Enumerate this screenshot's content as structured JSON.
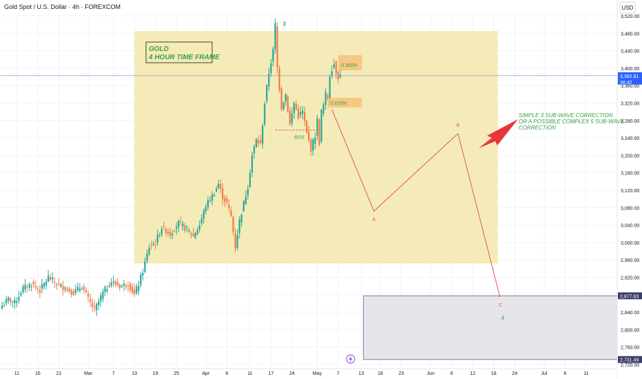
{
  "header": {
    "title": "Gold Spot / U.S. Dollar · 4h · FOREXCOM",
    "currency": "USD"
  },
  "price_tags": {
    "current_price": "3,382.81",
    "countdown": "36:42",
    "level_upper": "2,877.63",
    "level_lower": "2,731.49"
  },
  "annotations": {
    "box_title_line1": "GOLD",
    "box_title_line2": "4 HOUR TIME FRAME",
    "fib_upper": "0.365%",
    "fib_lower": "0.618%",
    "bos": "BOS",
    "wave_peak": "3",
    "wave_a": "A",
    "wave_b": "B",
    "wave_c": "C",
    "wave_4": "4",
    "note_line1": "SIMPLE 3 SUB-WAVE CORRECTION",
    "note_line2": "OR A POSSIBLE COMPLEX 5 SUB-WAVE",
    "note_line3": "CORRECTION"
  },
  "colors": {
    "bull": "#26a69a",
    "bear": "#ef7b45",
    "zone": "#f2e6a6",
    "projection": "#e4574e",
    "wave_label": "#3aa24a",
    "arrow": "#e8353b",
    "price_tag": "#2962ff",
    "grid": "#f0f3fa"
  },
  "chart_data": {
    "type": "candlestick",
    "title": "Gold Spot / U.S. Dollar · 4h · FOREXCOM",
    "timeframe": "4h",
    "y_axis": {
      "range": [
        2720,
        3520
      ],
      "ticks": [
        3520,
        3480,
        3440,
        3400,
        3360,
        3320,
        3280,
        3240,
        3200,
        3160,
        3120,
        3080,
        3040,
        3000,
        2960,
        2920,
        2880,
        2840,
        2800,
        2760,
        2720
      ],
      "tick_labels": [
        "3,520.00",
        "3,480.00",
        "3,440.00",
        "3,400.00",
        "3,360.00",
        "3,320.00",
        "3,280.00",
        "3,240.00",
        "3,200.00",
        "3,160.00",
        "3,120.00",
        "3,080.00",
        "3,040.00",
        "3,000.00",
        "2,960.00",
        "2,920.00",
        "2,880.00",
        "2,840.00",
        "2,800.00",
        "2,760.00",
        "2,720.00"
      ]
    },
    "x_axis": {
      "tick_labels": [
        "11",
        "16",
        "21",
        "Mar",
        "7",
        "13",
        "19",
        "25",
        "Apr",
        "6",
        "11",
        "17",
        "24",
        "May",
        "7",
        "13",
        "18",
        "23",
        "Jun",
        "6",
        "12",
        "18",
        "24",
        "Jul",
        "6",
        "11"
      ],
      "tick_index": [
        7,
        17,
        27,
        41,
        53,
        63,
        73,
        83,
        97,
        107,
        118,
        128,
        138,
        150,
        160,
        171,
        180,
        190,
        204,
        214,
        224,
        234,
        244,
        258,
        268,
        278
      ]
    },
    "price_path": {
      "index": [
        0,
        3,
        6,
        10,
        14,
        18,
        22,
        26,
        30,
        34,
        38,
        41,
        44,
        48,
        52,
        56,
        60,
        63,
        65,
        67,
        70,
        73,
        76,
        80,
        84,
        88,
        91,
        94,
        97,
        99,
        101,
        103,
        105,
        107,
        109,
        111,
        113,
        115,
        117,
        119,
        121,
        123,
        125,
        127,
        129,
        130,
        131,
        133,
        135,
        137,
        139,
        141,
        143,
        145,
        147,
        149,
        150,
        151,
        152,
        153,
        154,
        155,
        156,
        157,
        158,
        159,
        160,
        161
      ],
      "close": [
        2855,
        2870,
        2862,
        2895,
        2905,
        2890,
        2920,
        2905,
        2895,
        2885,
        2900,
        2870,
        2845,
        2885,
        2910,
        2900,
        2905,
        2880,
        2905,
        2935,
        2990,
        3000,
        3035,
        3020,
        3045,
        3030,
        3015,
        3040,
        3085,
        3100,
        3115,
        3135,
        3105,
        3090,
        3060,
        2990,
        3050,
        3090,
        3130,
        3200,
        3235,
        3225,
        3320,
        3390,
        3440,
        3500,
        3400,
        3310,
        3340,
        3270,
        3320,
        3290,
        3300,
        3250,
        3215,
        3245,
        3280,
        3230,
        3300,
        3315,
        3340,
        3330,
        3385,
        3400,
        3410,
        3392,
        3380,
        3383
      ]
    },
    "zone": {
      "x_index": [
        63,
        236
      ],
      "price": [
        2952,
        3485
      ]
    },
    "lower_zone": {
      "x_index": [
        172,
        290
      ],
      "price": [
        2731.49,
        2877.63
      ]
    },
    "horizontal_line": {
      "price": 3382.81
    },
    "bos_level": {
      "x_index": [
        130,
        151
      ],
      "price": 3258
    },
    "fib_upper_box": {
      "x_index": [
        160,
        170
      ],
      "price": [
        3395,
        3430
      ]
    },
    "fib_lower_box": {
      "x_index": [
        155,
        170
      ],
      "price": [
        3310,
        3332
      ]
    },
    "projection": {
      "x_index": [
        157,
        177,
        217,
        237
      ],
      "price": [
        3305,
        3072,
        3250,
        2875
      ],
      "labels": [
        "",
        "A",
        "B",
        "C"
      ]
    },
    "wave_peak_point": {
      "x_index": 134,
      "price": 3492
    },
    "wave4_point": {
      "x_index": 237,
      "price": 2823
    }
  }
}
